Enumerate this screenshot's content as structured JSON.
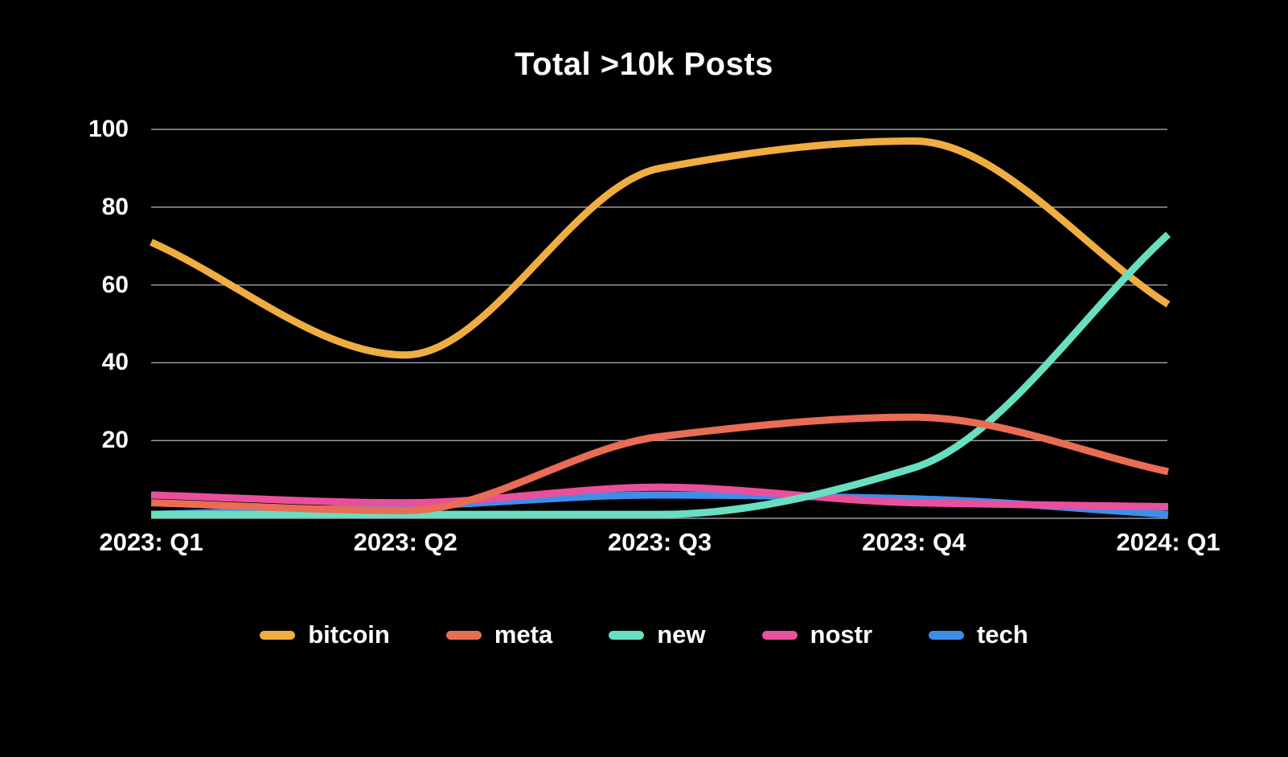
{
  "chart_data": {
    "type": "line",
    "title": "Total >10k Posts",
    "categories": [
      "2023: Q1",
      "2023: Q2",
      "2023: Q3",
      "2023: Q4",
      "2024: Q1"
    ],
    "series": [
      {
        "name": "bitcoin",
        "color": "#F0AD42",
        "values": [
          71,
          42,
          90,
          97,
          55
        ]
      },
      {
        "name": "meta",
        "color": "#E96C55",
        "values": [
          4,
          2,
          21,
          26,
          12
        ]
      },
      {
        "name": "new",
        "color": "#68DFC1",
        "values": [
          1,
          1,
          1,
          13,
          73
        ]
      },
      {
        "name": "nostr",
        "color": "#E9509C",
        "values": [
          6,
          4,
          8,
          4,
          3
        ]
      },
      {
        "name": "tech",
        "color": "#3E8EE9",
        "values": [
          1,
          3,
          6,
          5,
          1
        ]
      }
    ],
    "y_ticks": [
      20,
      40,
      60,
      80,
      100
    ],
    "ylim": [
      0,
      100
    ],
    "xlabel": "",
    "ylabel": "",
    "grid": true,
    "legend_position": "bottom",
    "line_style": {
      "width": 9,
      "interpolation": "monotone",
      "cap": "butt"
    },
    "draw_order_bottom_to_top": [
      "bitcoin",
      "tech",
      "nostr",
      "new",
      "meta"
    ],
    "colors": {
      "background": "#000000",
      "text": "#FFFFFF",
      "gridline": "#9B9B9B"
    }
  }
}
